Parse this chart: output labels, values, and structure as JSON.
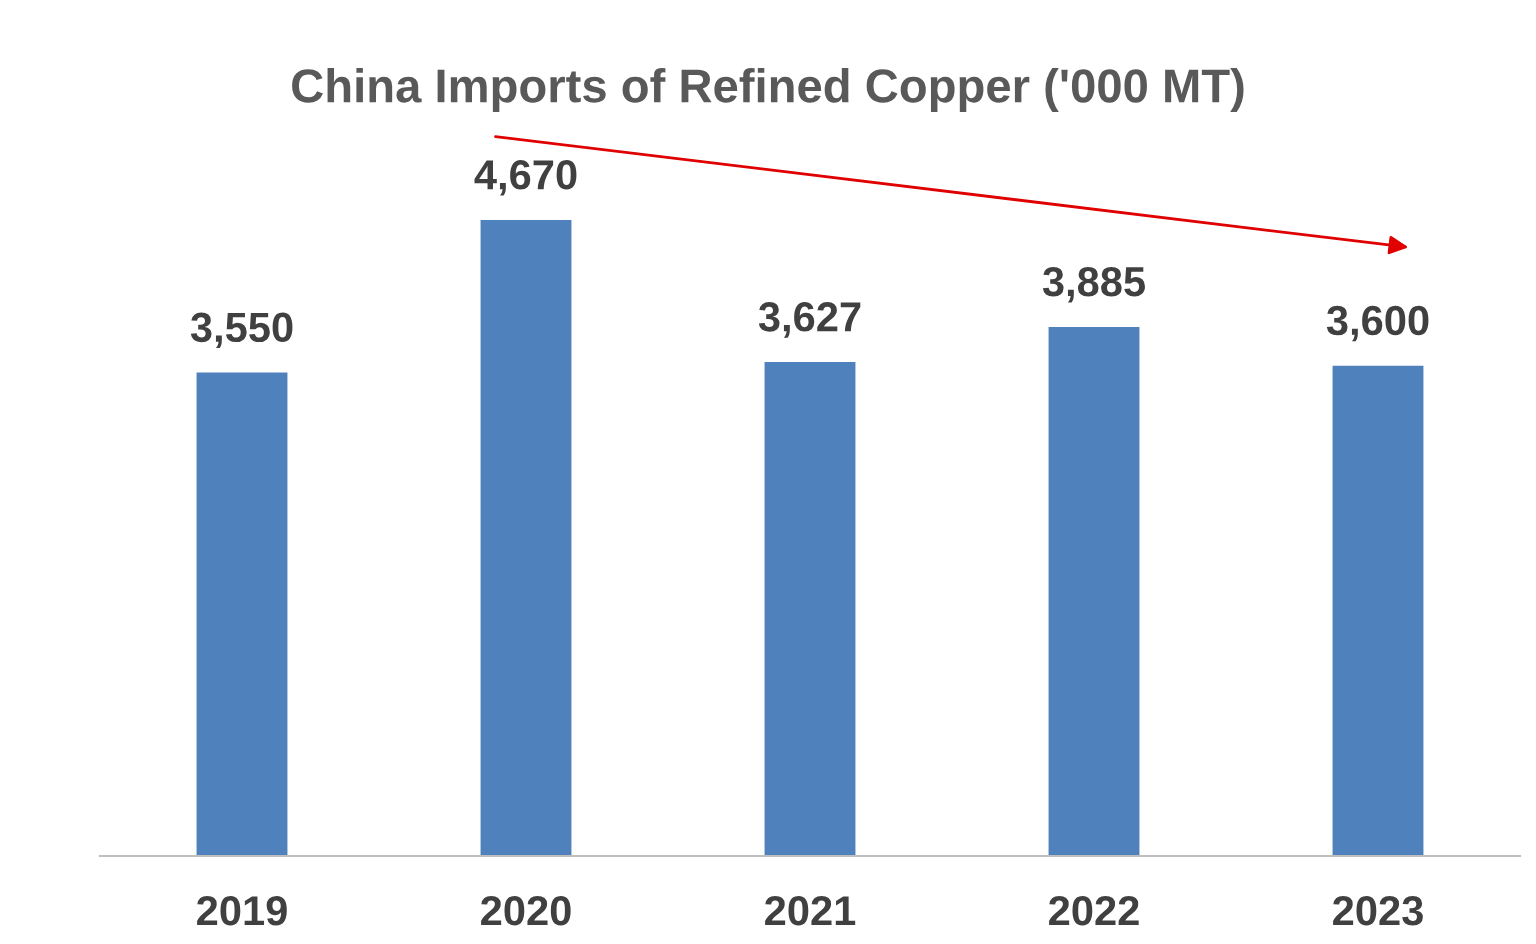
{
  "chart_data": {
    "type": "bar",
    "title": "China Imports of Refined Copper ('000 MT)",
    "categories": [
      "2019",
      "2020",
      "2021",
      "2022",
      "2023"
    ],
    "values": [
      3550,
      4670,
      3627,
      3885,
      3600
    ],
    "value_labels": [
      "3,550",
      "4,670",
      "3,627",
      "3,885",
      "3,600"
    ],
    "color": "#4f81bd"
  }
}
